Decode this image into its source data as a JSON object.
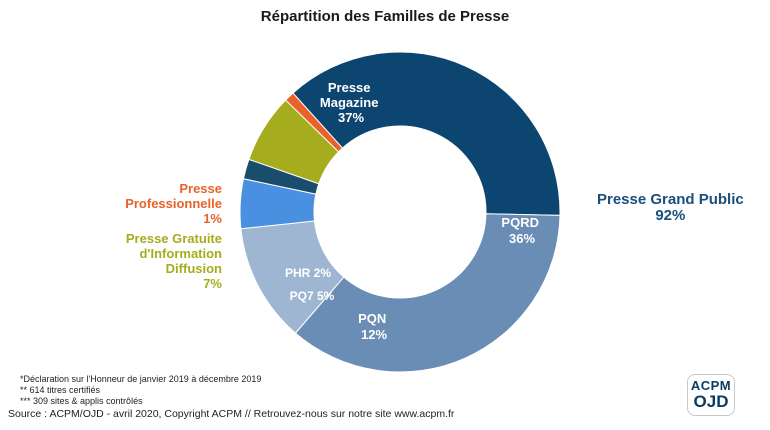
{
  "chart_data": {
    "type": "donut",
    "title": "Répartition des Familles de Presse",
    "slices": [
      {
        "label": "Presse Magazine",
        "value_label": "37%",
        "value": 37,
        "color": "#0d4571"
      },
      {
        "label": "PQRD",
        "value_label": "36%",
        "value": 36,
        "color": "#6a8db5"
      },
      {
        "label": "PQN",
        "value_label": "12%",
        "value": 12,
        "color": "#9fb6d2"
      },
      {
        "label": "PQ7",
        "value_label": "5%",
        "value": 5,
        "color": "#4a90e0"
      },
      {
        "label": "PHR",
        "value_label": "2%",
        "value": 2,
        "color": "#1a4d6b"
      },
      {
        "label": "Presse Gratuite d'Information Diffusion",
        "value_label": "7%",
        "value": 7,
        "color": "#a5ac1e"
      },
      {
        "label": "Presse Professionnelle",
        "value_label": "1%",
        "value": 1,
        "color": "#e8622a"
      }
    ],
    "groups": [
      {
        "label": "Presse Grand Public",
        "value_label": "92%"
      }
    ]
  },
  "labels": {
    "presse_magazine": [
      "Presse",
      "Magazine",
      "37%"
    ],
    "pqrd": [
      "PQRD",
      "36%"
    ],
    "pqn": [
      "PQN",
      "12%"
    ],
    "pq7": "PQ7 5%",
    "phr": "PHR 2%",
    "presse_professionnelle": [
      "Presse",
      "Professionnelle",
      "1%"
    ],
    "presse_gratuite": [
      "Presse Gratuite",
      "d'Information",
      "Diffusion",
      "7%"
    ],
    "presse_grand_public": [
      "Presse Grand Public",
      "92%"
    ]
  },
  "notes": [
    "*Déclaration sur l'Honneur de janvier 2019 à décembre 2019",
    "** 614 titres certifiés",
    "*** 309 sites & applis contrôlés"
  ],
  "source": "Source : ACPM/OJD - avril 2020, Copyright ACPM // Retrouvez-nous sur notre site www.acpm.fr",
  "logo": {
    "line1": "ACPM",
    "line2": "OJD"
  }
}
